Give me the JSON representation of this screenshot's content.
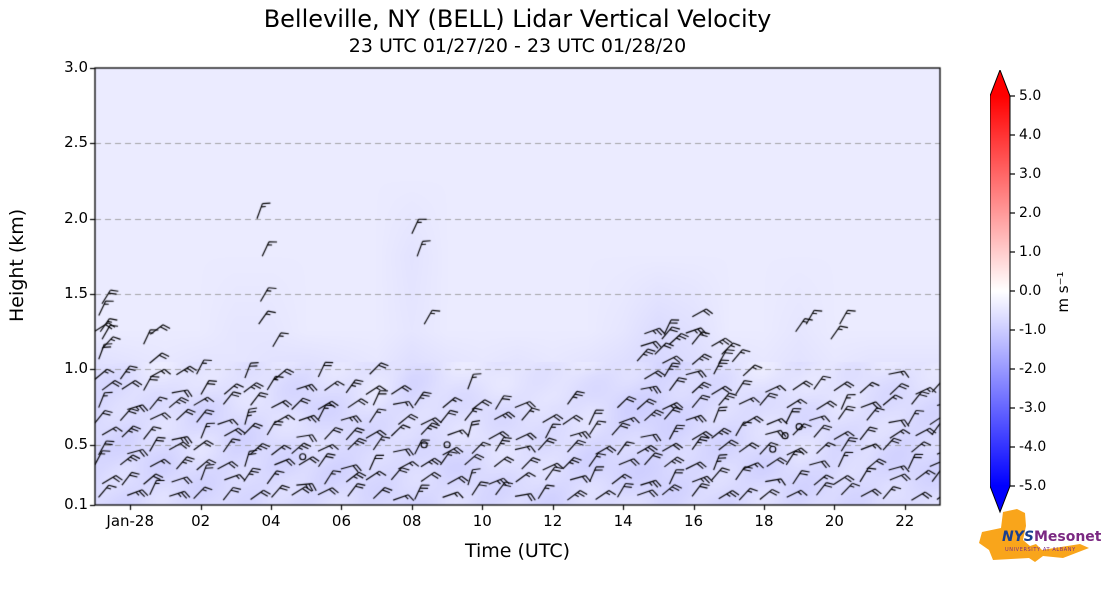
{
  "chart_data": {
    "type": "heatmap",
    "overlays": "wind barbs",
    "title": "Belleville, NY (BELL) Lidar Vertical Velocity",
    "subtitle": "23 UTC 01/27/20 - 23 UTC 01/28/20",
    "xlabel": "Time (UTC)",
    "ylabel": "Height (km)",
    "x_range_hours": [
      -1,
      23
    ],
    "y_range_km": [
      0.1,
      3.0
    ],
    "x_ticks": [
      {
        "t": 0,
        "label": "Jan-28"
      },
      {
        "t": 2,
        "label": "02"
      },
      {
        "t": 4,
        "label": "04"
      },
      {
        "t": 6,
        "label": "06"
      },
      {
        "t": 8,
        "label": "08"
      },
      {
        "t": 10,
        "label": "10"
      },
      {
        "t": 12,
        "label": "12"
      },
      {
        "t": 14,
        "label": "14"
      },
      {
        "t": 16,
        "label": "16"
      },
      {
        "t": 18,
        "label": "18"
      },
      {
        "t": 20,
        "label": "20"
      },
      {
        "t": 22,
        "label": "22"
      }
    ],
    "y_ticks": [
      {
        "v": 3.0,
        "label": "3.0"
      },
      {
        "v": 2.5,
        "label": "2.5"
      },
      {
        "v": 2.0,
        "label": "2.0"
      },
      {
        "v": 1.5,
        "label": "1.5"
      },
      {
        "v": 1.0,
        "label": "1.0"
      },
      {
        "v": 0.5,
        "label": "0.5"
      },
      {
        "v": 0.1,
        "label": "0.1"
      }
    ],
    "colorbar": {
      "label": "m s⁻¹",
      "min": -5.0,
      "max": 5.0,
      "ticks": [
        {
          "v": 5,
          "label": "5.0"
        },
        {
          "v": 4,
          "label": "4.0"
        },
        {
          "v": 3,
          "label": "3.0"
        },
        {
          "v": 2,
          "label": "2.0"
        },
        {
          "v": 1,
          "label": "1.0"
        },
        {
          "v": 0,
          "label": "0.0"
        },
        {
          "v": -1,
          "label": "-1.0"
        },
        {
          "v": -2,
          "label": "-2.0"
        },
        {
          "v": -3,
          "label": "-3.0"
        },
        {
          "v": -4,
          "label": "-4.0"
        },
        {
          "v": -5,
          "label": "-5.0"
        }
      ],
      "colors_top_to_bottom": [
        "#ff0000",
        "#ffffff",
        "#0000ff"
      ]
    },
    "field": {
      "comment": "estimated vertical velocity (m/s) grid, times hourly from t=-1 (23 UTC 01/27) to t=22",
      "time_start": -1,
      "time_step": 1,
      "heights_km": [
        0.15,
        0.35,
        0.55,
        0.75,
        0.95,
        1.25,
        1.75,
        2.25,
        2.75
      ],
      "values": [
        [
          -0.7,
          -0.8,
          -0.7,
          -0.8,
          -0.7,
          -0.7,
          -0.8,
          -0.7,
          -0.7,
          -0.8,
          -0.7,
          -0.8,
          -0.7,
          -0.8,
          -0.7,
          -0.7,
          -0.8,
          -0.7,
          -0.8,
          -0.7,
          -0.8,
          -0.7,
          -0.8,
          -0.7
        ],
        [
          -0.8,
          -0.7,
          -0.8,
          -0.7,
          -0.8,
          -0.8,
          -0.7,
          -0.8,
          -0.8,
          -0.7,
          -0.8,
          -0.7,
          -0.6,
          -0.7,
          -0.8,
          -0.8,
          -0.9,
          -0.8,
          -0.7,
          -0.8,
          -0.7,
          -0.8,
          -0.7,
          -0.8
        ],
        [
          -0.7,
          -0.8,
          -0.7,
          -0.6,
          -0.8,
          -0.7,
          -0.6,
          -0.8,
          -0.7,
          -0.6,
          -0.7,
          -0.6,
          -0.7,
          -0.6,
          -0.7,
          -0.8,
          -0.8,
          -0.7,
          -0.8,
          -0.7,
          -0.6,
          -0.7,
          -0.6,
          -0.8
        ],
        [
          -0.8,
          -0.7,
          -0.6,
          -0.8,
          -0.7,
          -0.6,
          -0.8,
          -0.7,
          -0.6,
          -0.8,
          -0.6,
          -0.7,
          -0.6,
          -0.7,
          -0.6,
          -0.8,
          -0.9,
          -0.8,
          -0.7,
          -0.6,
          -0.7,
          -0.6,
          -0.7,
          -0.7
        ],
        [
          -0.7,
          -0.6,
          -0.5,
          -0.6,
          -0.5,
          -0.6,
          -0.7,
          -0.6,
          -0.5,
          -0.7,
          -0.6,
          -0.5,
          -0.6,
          -0.5,
          -0.6,
          -0.7,
          -0.8,
          -0.7,
          -0.6,
          -0.5,
          -0.6,
          -0.5,
          -0.6,
          -0.6
        ],
        [
          -0.4,
          -0.4,
          -0.4,
          -0.4,
          -0.5,
          -0.5,
          -0.4,
          -0.4,
          -0.4,
          -0.5,
          -0.4,
          -0.4,
          -0.4,
          -0.4,
          -0.4,
          -0.5,
          -0.7,
          -0.6,
          -0.4,
          -0.4,
          -0.5,
          -0.4,
          -0.4,
          -0.4
        ],
        [
          -0.4,
          -0.4,
          -0.4,
          -0.4,
          -0.4,
          -0.4,
          -0.4,
          -0.4,
          -0.4,
          -0.55,
          -0.4,
          -0.4,
          -0.4,
          -0.4,
          -0.4,
          -0.4,
          -0.4,
          -0.4,
          -0.4,
          -0.4,
          -0.4,
          -0.4,
          -0.4,
          -0.4
        ],
        [
          -0.4,
          -0.4,
          -0.4,
          -0.4,
          -0.4,
          -0.4,
          -0.4,
          -0.4,
          -0.4,
          -0.4,
          -0.4,
          -0.4,
          -0.4,
          -0.4,
          -0.4,
          -0.4,
          -0.4,
          -0.4,
          -0.4,
          -0.4,
          -0.4,
          -0.4,
          -0.4,
          -0.4
        ],
        [
          -0.4,
          -0.4,
          -0.4,
          -0.4,
          -0.4,
          -0.4,
          -0.4,
          -0.4,
          -0.4,
          -0.4,
          -0.4,
          -0.4,
          -0.4,
          -0.4,
          -0.4,
          -0.4,
          -0.4,
          -0.4,
          -0.4,
          -0.4,
          -0.4,
          -0.4,
          -0.4,
          -0.4
        ]
      ]
    },
    "wind_barb_columns": [
      [
        -0.9,
        1.45,
        40,
        15
      ],
      [
        -0.2,
        1.0,
        55,
        20
      ],
      [
        0.5,
        1.3,
        45,
        15
      ],
      [
        1.2,
        1.0,
        60,
        20
      ],
      [
        1.9,
        0.95,
        40,
        15
      ],
      [
        2.6,
        0.9,
        55,
        15
      ],
      [
        3.3,
        0.95,
        35,
        20
      ],
      [
        4.0,
        0.95,
        50,
        15
      ],
      [
        4.7,
        0.9,
        65,
        20
      ],
      [
        5.4,
        1.0,
        45,
        15
      ],
      [
        6.1,
        0.9,
        55,
        20
      ],
      [
        6.8,
        0.95,
        40,
        15
      ],
      [
        7.5,
        0.9,
        60,
        15
      ],
      [
        8.2,
        0.8,
        45,
        20
      ],
      [
        8.9,
        0.8,
        55,
        15
      ],
      [
        9.6,
        0.85,
        35,
        15
      ],
      [
        10.3,
        0.75,
        50,
        20
      ],
      [
        11.0,
        0.8,
        60,
        15
      ],
      [
        11.7,
        0.7,
        45,
        15
      ],
      [
        12.4,
        0.75,
        55,
        20
      ],
      [
        13.1,
        0.65,
        40,
        15
      ],
      [
        13.8,
        0.8,
        50,
        15
      ],
      [
        14.5,
        1.25,
        60,
        20
      ],
      [
        15.2,
        1.3,
        45,
        20
      ],
      [
        15.9,
        1.35,
        55,
        20
      ],
      [
        16.6,
        1.2,
        40,
        20
      ],
      [
        17.3,
        0.95,
        50,
        15
      ],
      [
        18.0,
        0.9,
        60,
        15
      ],
      [
        18.7,
        0.85,
        45,
        15
      ],
      [
        19.4,
        0.9,
        55,
        15
      ],
      [
        20.1,
        0.85,
        40,
        15
      ],
      [
        20.8,
        0.9,
        50,
        15
      ],
      [
        21.5,
        0.95,
        60,
        15
      ],
      [
        22.2,
        0.9,
        45,
        15
      ],
      [
        22.8,
        0.85,
        55,
        15
      ]
    ],
    "wind_barb_extras": [
      [
        3.6,
        2.0,
        20,
        15
      ],
      [
        3.75,
        1.75,
        25,
        15
      ],
      [
        3.7,
        1.45,
        30,
        15
      ],
      [
        3.65,
        1.3,
        35,
        15
      ],
      [
        4.05,
        1.15,
        30,
        15
      ],
      [
        8.0,
        1.9,
        25,
        15
      ],
      [
        8.15,
        1.75,
        20,
        15
      ],
      [
        8.35,
        1.3,
        30,
        15
      ],
      [
        -0.85,
        1.25,
        35,
        15
      ],
      [
        -0.8,
        1.2,
        30,
        10
      ],
      [
        14.9,
        1.1,
        45,
        20
      ],
      [
        15.1,
        1.2,
        40,
        20
      ],
      [
        18.9,
        1.25,
        35,
        15
      ],
      [
        19.2,
        1.3,
        30,
        15
      ],
      [
        19.9,
        1.2,
        35,
        15
      ],
      [
        20.15,
        1.3,
        30,
        15
      ],
      [
        16.8,
        1.1,
        45,
        15
      ],
      [
        17.1,
        1.05,
        40,
        15
      ]
    ],
    "calm_markers": [
      [
        8.35,
        0.5
      ],
      [
        9.0,
        0.5
      ],
      [
        18.25,
        0.47
      ],
      [
        18.6,
        0.56
      ],
      [
        19.0,
        0.62
      ],
      [
        4.9,
        0.42
      ]
    ],
    "colors": {
      "grid": "#999999",
      "barb": "#000000",
      "axis": "#000000"
    }
  },
  "logo": {
    "nys": "NYS",
    "mesonet": "Mesonet",
    "subtext": "UNIVERSITY AT ALBANY",
    "state_color": "#F9A51B",
    "nys_color": "#1B3F8F",
    "mesonet_color": "#7B2982"
  }
}
